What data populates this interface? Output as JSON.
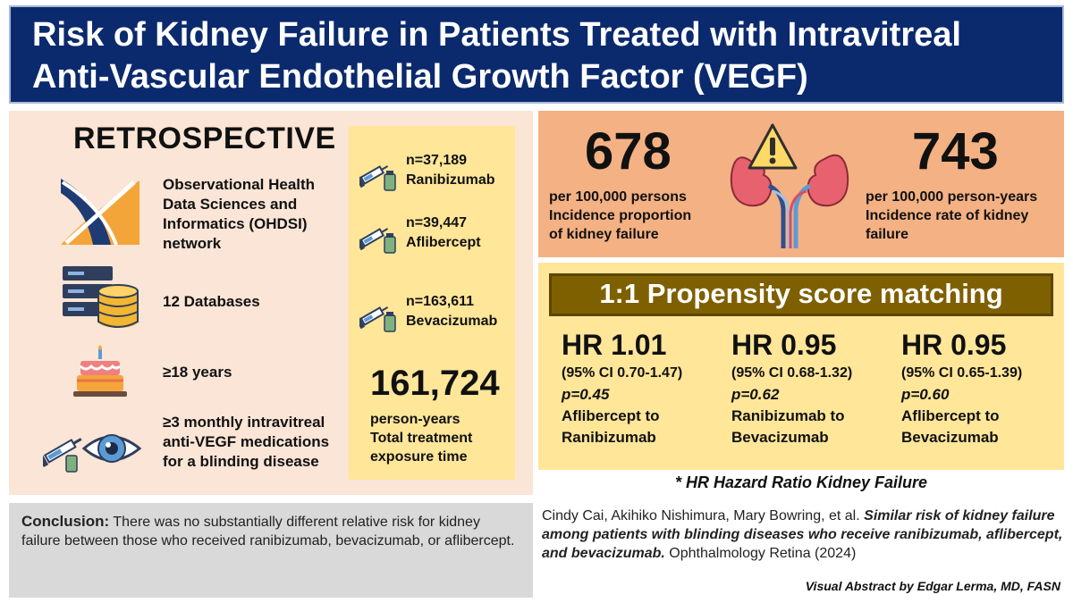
{
  "title": {
    "line1": "Risk of Kidney Failure in Patients Treated with Intravitreal",
    "line2": "Anti-Vascular Endothelial Growth Factor (VEGF)"
  },
  "study": {
    "design": "RETROSPECTIVE",
    "items": [
      {
        "icon": "ohdsi-logo-icon",
        "text": [
          "Observational Health",
          "Data Sciences and",
          "Informatics (OHDSI)",
          "network"
        ]
      },
      {
        "icon": "database-icon",
        "text": [
          "12 Databases"
        ]
      },
      {
        "icon": "birthday-cake-icon",
        "text": [
          "≥18 years"
        ]
      },
      {
        "icon": "eye-injection-icon",
        "text": [
          "≥3 monthly intravitreal",
          "anti-VEGF medications",
          "for a blinding disease"
        ]
      }
    ]
  },
  "cohorts": [
    {
      "icon": "syringe-vial-icon",
      "n": "n=37,189",
      "drug": "Ranibizumab"
    },
    {
      "icon": "syringe-vial-icon",
      "n": "n=39,447",
      "drug": "Aflibercept"
    },
    {
      "icon": "syringe-vial-icon",
      "n": "n=163,611",
      "drug": "Bevacizumab"
    }
  ],
  "exposure": {
    "value": "161,724",
    "label": [
      "person-years",
      "Total treatment",
      "exposure time"
    ]
  },
  "incidence": {
    "proportion_value": "678",
    "proportion_label": [
      "per 100,000 persons",
      "Incidence proportion",
      "of kidney failure"
    ],
    "rate_value": "743",
    "rate_label": [
      "per 100,000 person-years",
      "Incidence rate of kidney",
      "failure"
    ]
  },
  "propensity": {
    "header": "1:1 Propensity score matching",
    "results": [
      {
        "hr": "HR 1.01",
        "ci": "(95% CI 0.70-1.47)",
        "p": "p=0.45",
        "comparison": [
          "Aflibercept to",
          "Ranibizumab"
        ]
      },
      {
        "hr": "HR 0.95",
        "ci": "(95% CI 0.68-1.32)",
        "p": "p=0.62",
        "comparison": [
          "Ranibizumab to",
          "Bevacizumab"
        ]
      },
      {
        "hr": "HR 0.95",
        "ci": "(95% CI 0.65-1.39)",
        "p": "p=0.60",
        "comparison": [
          "Aflibercept to",
          "Bevacizumab"
        ]
      }
    ],
    "footnote": "* HR Hazard Ratio Kidney Failure"
  },
  "conclusion": {
    "label": "Conclusion:",
    "text": "There was no substantially different relative risk for kidney failure between those who received ranibizumab, bevacizumab, or aflibercept."
  },
  "citation": {
    "authors": "Cindy Cai, Akihiko Nishimura, Mary Bowring,  et al.",
    "title": "Similar risk of kidney failure among patients with blinding diseases who receive ranibizumab,  aflibercept, and bevacizumab.",
    "journal": "Ophthalmology Retina",
    "year": "(2024)",
    "credit": "Visual Abstract by Edgar Lerma, MD, FASN"
  },
  "colors": {
    "title_bg": "#0b2a6e",
    "left_panel_bg": "#fbe5d6",
    "cohort_bg": "#ffe699",
    "incidence_bg": "#f4b183",
    "ps_header_bg": "#7f6000",
    "conclusion_bg": "#d9d9d9"
  }
}
